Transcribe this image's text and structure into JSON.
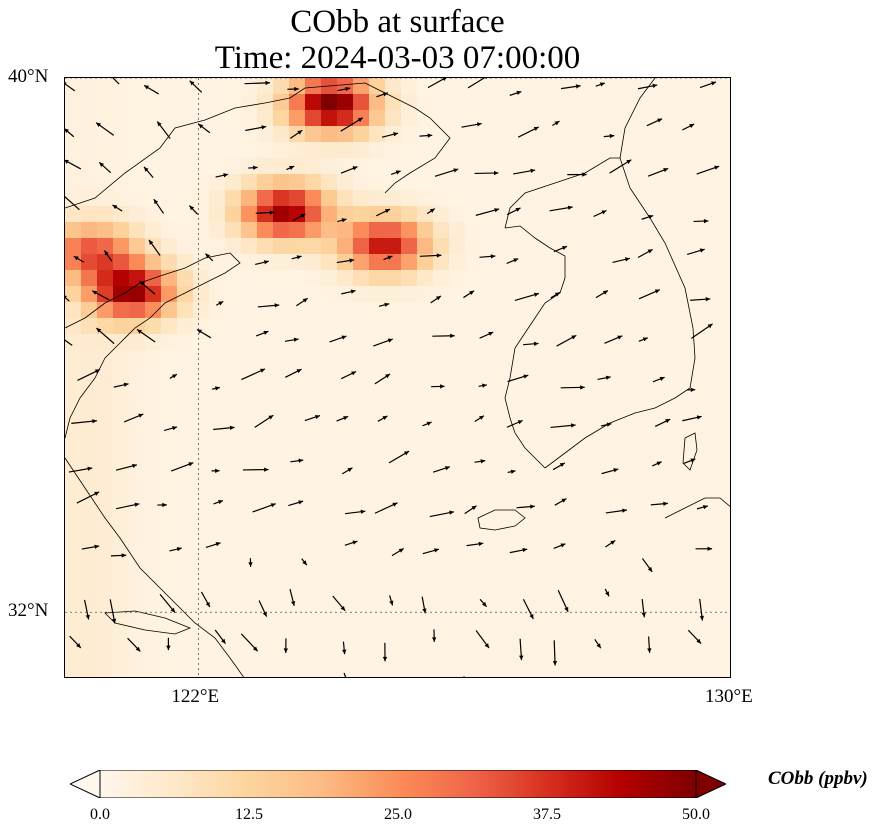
{
  "title": {
    "line1": "CObb at surface",
    "line2": "Time: 2024-03-03 07:00:00"
  },
  "map": {
    "lat_ticks": [
      "40°N",
      "32°N"
    ],
    "lon_ticks": [
      "122°E",
      "130°E"
    ],
    "lat_values": [
      40,
      32
    ],
    "lon_values": [
      122,
      130
    ],
    "extent": {
      "lon_min": 120,
      "lon_max": 130,
      "lat_min": 31,
      "lat_max": 40
    },
    "gridlines": "dotted",
    "field_plumes": [
      {
        "name": "",
        "lon": 124.0,
        "lat": 39.6,
        "peak": 50
      },
      {
        "name": "",
        "lon": 123.3,
        "lat": 38.0,
        "peak": 45
      },
      {
        "name": "",
        "lon": 124.8,
        "lat": 37.5,
        "peak": 40
      },
      {
        "name": "",
        "lon": 121.0,
        "lat": 36.8,
        "peak": 45
      },
      {
        "name": "",
        "lon": 120.4,
        "lat": 37.4,
        "peak": 30
      }
    ],
    "features": [
      "coastlines",
      "borders",
      "wind-vectors"
    ]
  },
  "colorbar": {
    "label": "CObb (ppbv)",
    "ticks": [
      "0.0",
      "12.5",
      "25.0",
      "37.5",
      "50.0"
    ],
    "min": 0,
    "max": 50,
    "colormap": [
      "#fff7ec",
      "#fee8c8",
      "#fdd49e",
      "#fdbb84",
      "#fc8d59",
      "#ef6548",
      "#d7301f",
      "#b30000",
      "#7f0000"
    ],
    "extend": "both"
  }
}
